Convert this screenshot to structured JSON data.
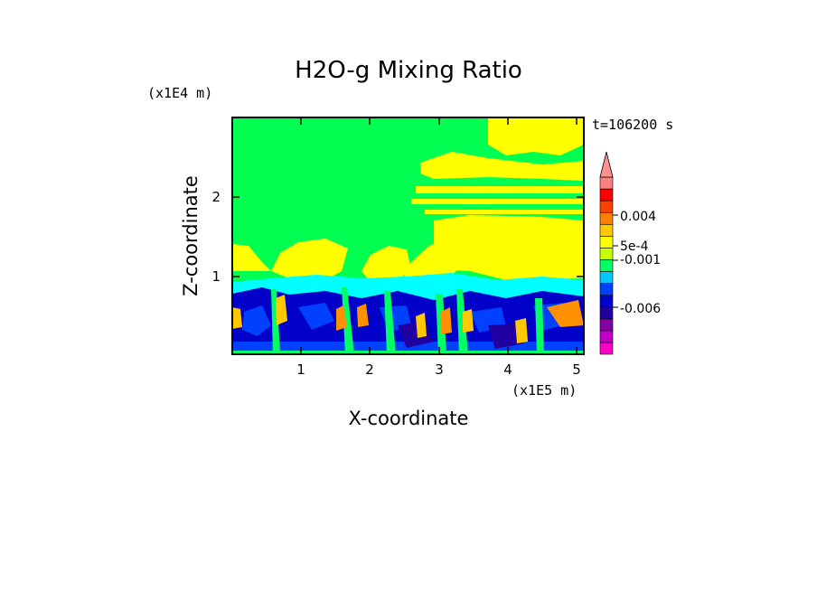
{
  "chart_data": {
    "type": "heatmap",
    "title": "H2O-g Mixing Ratio",
    "xlabel": "X-coordinate",
    "ylabel": "Z-coordinate",
    "x_scale_label": "(x1E5 m)",
    "y_scale_label": "(x1E4 m)",
    "time_label": "t=106200 s",
    "xlim": [
      0.02,
      5.12
    ],
    "ylim": [
      0,
      2.95
    ],
    "x_ticks": [
      "1",
      "2",
      "3",
      "4",
      "5"
    ],
    "y_ticks": [
      "1",
      "2"
    ],
    "colorbar": {
      "labels": [
        "0.004",
        "5e-4",
        "-0.001",
        "-0.006"
      ],
      "colors": [
        "#ff00c8",
        "#c000c8",
        "#8000a0",
        "#2000a0",
        "#0000c8",
        "#0040ff",
        "#00c8ff",
        "#00ff64",
        "#c8ff00",
        "#ffff00",
        "#ffc800",
        "#ff8000",
        "#ff4000",
        "#ff0000",
        "#ff8080"
      ],
      "extend": "max"
    },
    "colors": {
      "background": "#00ff50",
      "moist_band": "#ffff00",
      "low_layer": "#0000c8",
      "mid_band": "#00ffff",
      "hot_spots": "#ff9000"
    }
  }
}
